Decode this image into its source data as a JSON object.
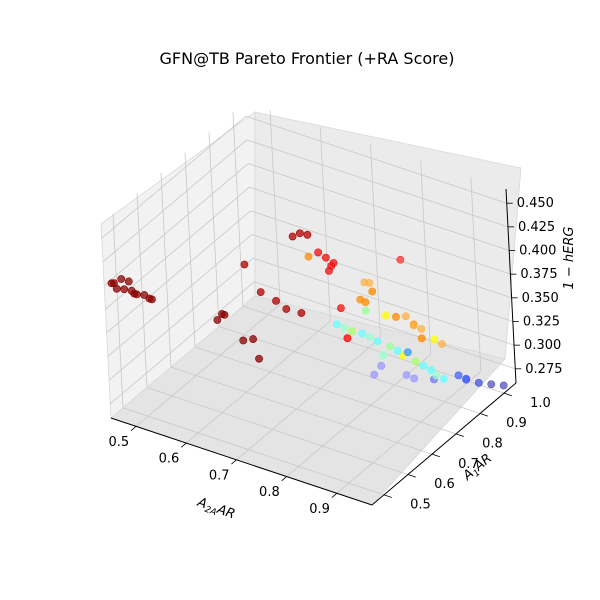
{
  "chart_data": {
    "type": "scatter",
    "projection": "3d",
    "title": "GFN@TB Pareto Frontier (+RA Score)",
    "axes": {
      "x": {
        "label_main": "A",
        "label_sub": "2A",
        "label_tail": "AR",
        "ticks": [
          "0.5",
          "0.6",
          "0.7",
          "0.8",
          "0.9"
        ],
        "range": [
          0.45,
          0.97
        ]
      },
      "y": {
        "label_main": "A",
        "label_sub": "1",
        "label_tail": "AR",
        "ticks": [
          "0.5",
          "0.6",
          "0.7",
          "0.8",
          "0.9",
          "1.0"
        ],
        "range": [
          0.45,
          1.05
        ]
      },
      "z": {
        "label": "1 − hERG",
        "ticks": [
          "0.275",
          "0.300",
          "0.325",
          "0.350",
          "0.375",
          "0.400",
          "0.425",
          "0.450"
        ],
        "range": [
          0.26,
          0.465
        ]
      }
    },
    "color_encoding": "RA score (jet colormap)",
    "grid": true,
    "points": [
      {
        "x": 0.46,
        "y": 0.46,
        "z": 0.402,
        "c": "#8b0000"
      },
      {
        "x": 0.46,
        "y": 0.47,
        "z": 0.4,
        "c": "#8b0000"
      },
      {
        "x": 0.47,
        "y": 0.46,
        "z": 0.398,
        "c": "#8b0000"
      },
      {
        "x": 0.47,
        "y": 0.48,
        "z": 0.404,
        "c": "#8b0000"
      },
      {
        "x": 0.48,
        "y": 0.47,
        "z": 0.397,
        "c": "#8b0000"
      },
      {
        "x": 0.49,
        "y": 0.48,
        "z": 0.395,
        "c": "#8b0000"
      },
      {
        "x": 0.5,
        "y": 0.48,
        "z": 0.393,
        "c": "#8b0000"
      },
      {
        "x": 0.51,
        "y": 0.49,
        "z": 0.392,
        "c": "#8b0000"
      },
      {
        "x": 0.52,
        "y": 0.49,
        "z": 0.39,
        "c": "#8b0000"
      },
      {
        "x": 0.52,
        "y": 0.5,
        "z": 0.387,
        "c": "#8b0000"
      },
      {
        "x": 0.5,
        "y": 0.47,
        "z": 0.396,
        "c": "#8b0000"
      },
      {
        "x": 0.48,
        "y": 0.49,
        "z": 0.401,
        "c": "#8b0000"
      },
      {
        "x": 0.62,
        "y": 0.56,
        "z": 0.37,
        "c": "#8b0000"
      },
      {
        "x": 0.63,
        "y": 0.57,
        "z": 0.375,
        "c": "#8b0000"
      },
      {
        "x": 0.62,
        "y": 0.58,
        "z": 0.372,
        "c": "#8b0000"
      },
      {
        "x": 0.65,
        "y": 0.6,
        "z": 0.345,
        "c": "#8b0000"
      },
      {
        "x": 0.66,
        "y": 0.62,
        "z": 0.344,
        "c": "#8b0000"
      },
      {
        "x": 0.67,
        "y": 0.62,
        "z": 0.325,
        "c": "#8b0000"
      },
      {
        "x": 0.64,
        "y": 0.64,
        "z": 0.415,
        "c": "#b00000"
      },
      {
        "x": 0.66,
        "y": 0.66,
        "z": 0.385,
        "c": "#b00000"
      },
      {
        "x": 0.68,
        "y": 0.68,
        "z": 0.375,
        "c": "#b00000"
      },
      {
        "x": 0.7,
        "y": 0.68,
        "z": 0.37,
        "c": "#b00000"
      },
      {
        "x": 0.72,
        "y": 0.7,
        "z": 0.365,
        "c": "#b00000"
      },
      {
        "x": 0.7,
        "y": 0.72,
        "z": 0.438,
        "c": "#b00000"
      },
      {
        "x": 0.71,
        "y": 0.73,
        "z": 0.441,
        "c": "#b00000"
      },
      {
        "x": 0.72,
        "y": 0.74,
        "z": 0.439,
        "c": "#b00000"
      },
      {
        "x": 0.74,
        "y": 0.74,
        "z": 0.424,
        "c": "#ee1111"
      },
      {
        "x": 0.75,
        "y": 0.75,
        "z": 0.418,
        "c": "#ee1111"
      },
      {
        "x": 0.76,
        "y": 0.74,
        "z": 0.408,
        "c": "#ee1111"
      },
      {
        "x": 0.76,
        "y": 0.76,
        "z": 0.412,
        "c": "#ee1111"
      },
      {
        "x": 0.75,
        "y": 0.77,
        "z": 0.405,
        "c": "#ee1111"
      },
      {
        "x": 0.73,
        "y": 0.72,
        "z": 0.422,
        "c": "#ff8c00"
      },
      {
        "x": 0.76,
        "y": 0.78,
        "z": 0.36,
        "c": "#ee1111"
      },
      {
        "x": 0.77,
        "y": 0.78,
        "z": 0.33,
        "c": "#ff0000"
      },
      {
        "x": 0.8,
        "y": 0.8,
        "z": 0.39,
        "c": "#ffb347"
      },
      {
        "x": 0.8,
        "y": 0.82,
        "z": 0.385,
        "c": "#ffb347"
      },
      {
        "x": 0.81,
        "y": 0.81,
        "z": 0.38,
        "c": "#ff8c00"
      },
      {
        "x": 0.79,
        "y": 0.8,
        "z": 0.37,
        "c": "#ff8c00"
      },
      {
        "x": 0.85,
        "y": 0.85,
        "z": 0.412,
        "c": "#ff3333"
      },
      {
        "x": 0.78,
        "y": 0.84,
        "z": 0.357,
        "c": "#ff8c00"
      },
      {
        "x": 0.79,
        "y": 0.82,
        "z": 0.354,
        "c": "#99ff99"
      },
      {
        "x": 0.82,
        "y": 0.84,
        "z": 0.35,
        "c": "#ffff00"
      },
      {
        "x": 0.83,
        "y": 0.86,
        "z": 0.346,
        "c": "#ff8c00"
      },
      {
        "x": 0.84,
        "y": 0.88,
        "z": 0.344,
        "c": "#ffb347"
      },
      {
        "x": 0.86,
        "y": 0.87,
        "z": 0.34,
        "c": "#ffb347"
      },
      {
        "x": 0.85,
        "y": 0.89,
        "z": 0.335,
        "c": "#ff8c00"
      },
      {
        "x": 0.86,
        "y": 0.9,
        "z": 0.33,
        "c": "#ffb347"
      },
      {
        "x": 0.87,
        "y": 0.88,
        "z": 0.326,
        "c": "#ff8c00"
      },
      {
        "x": 0.88,
        "y": 0.91,
        "z": 0.32,
        "c": "#ffff00"
      },
      {
        "x": 0.89,
        "y": 0.92,
        "z": 0.315,
        "c": "#ffb347"
      },
      {
        "x": 0.74,
        "y": 0.8,
        "z": 0.335,
        "c": "#66ffff"
      },
      {
        "x": 0.75,
        "y": 0.81,
        "z": 0.331,
        "c": "#99ffcc"
      },
      {
        "x": 0.76,
        "y": 0.82,
        "z": 0.327,
        "c": "#aaff66"
      },
      {
        "x": 0.77,
        "y": 0.84,
        "z": 0.322,
        "c": "#66ffff"
      },
      {
        "x": 0.78,
        "y": 0.85,
        "z": 0.318,
        "c": "#99ffcc"
      },
      {
        "x": 0.79,
        "y": 0.86,
        "z": 0.313,
        "c": "#66ffff"
      },
      {
        "x": 0.81,
        "y": 0.87,
        "z": 0.309,
        "c": "#99ff99"
      },
      {
        "x": 0.82,
        "y": 0.88,
        "z": 0.304,
        "c": "#66ffff"
      },
      {
        "x": 0.8,
        "y": 0.86,
        "z": 0.3,
        "c": "#99ffcc"
      },
      {
        "x": 0.82,
        "y": 0.9,
        "z": 0.295,
        "c": "#ffff00"
      },
      {
        "x": 0.84,
        "y": 0.91,
        "z": 0.29,
        "c": "#aaff66"
      },
      {
        "x": 0.85,
        "y": 0.92,
        "z": 0.285,
        "c": "#66ffff"
      },
      {
        "x": 0.86,
        "y": 0.93,
        "z": 0.28,
        "c": "#66ffff"
      },
      {
        "x": 0.87,
        "y": 0.93,
        "z": 0.276,
        "c": "#99ffcc"
      },
      {
        "x": 0.88,
        "y": 0.94,
        "z": 0.272,
        "c": "#66ffff"
      },
      {
        "x": 0.83,
        "y": 0.9,
        "z": 0.3,
        "c": "#3399ff"
      },
      {
        "x": 0.79,
        "y": 0.87,
        "z": 0.285,
        "c": "#9999ff"
      },
      {
        "x": 0.78,
        "y": 0.86,
        "z": 0.276,
        "c": "#9999ff"
      },
      {
        "x": 0.82,
        "y": 0.91,
        "z": 0.272,
        "c": "#9999ff"
      },
      {
        "x": 0.83,
        "y": 0.92,
        "z": 0.268,
        "c": "#9999ff"
      },
      {
        "x": 0.86,
        "y": 0.94,
        "z": 0.268,
        "c": "#7777ee"
      },
      {
        "x": 0.9,
        "y": 0.96,
        "z": 0.275,
        "c": "#4466ff"
      },
      {
        "x": 0.91,
        "y": 0.97,
        "z": 0.27,
        "c": "#4466ff"
      },
      {
        "x": 0.9,
        "y": 0.99,
        "z": 0.265,
        "c": "#5555dd"
      },
      {
        "x": 0.92,
        "y": 1.0,
        "z": 0.262,
        "c": "#4455dd"
      },
      {
        "x": 0.94,
        "y": 1.01,
        "z": 0.262,
        "c": "#5555bb"
      },
      {
        "x": 0.96,
        "y": 1.02,
        "z": 0.262,
        "c": "#5555bb"
      }
    ]
  }
}
